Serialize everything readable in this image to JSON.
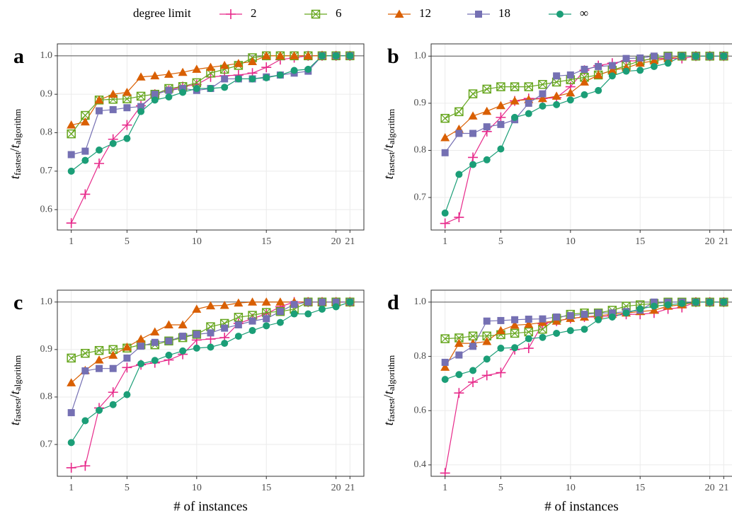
{
  "legend": {
    "title": "degree limit",
    "series": [
      {
        "name": "2",
        "color": "#e7298a",
        "marker": "plus"
      },
      {
        "name": "6",
        "color": "#66a61e",
        "marker": "boxed-x"
      },
      {
        "name": "12",
        "color": "#d95f02",
        "marker": "triangle"
      },
      {
        "name": "18",
        "color": "#7570b3",
        "marker": "square"
      },
      {
        "name": "∞",
        "color": "#1b9e77",
        "marker": "circle"
      }
    ]
  },
  "chart_data": [
    {
      "type": "line",
      "panel": "a",
      "y_label": [
        "t",
        "fastest",
        "/",
        "t",
        "algorithm"
      ],
      "x": [
        1,
        2,
        3,
        4,
        5,
        6,
        7,
        8,
        9,
        10,
        11,
        12,
        13,
        14,
        15,
        16,
        17,
        18,
        19,
        20,
        21
      ],
      "xlim": [
        0,
        22
      ],
      "xticks": [
        1,
        5,
        10,
        15,
        20,
        21
      ],
      "ylim": [
        0.547,
        1.031
      ],
      "yticks": [
        0.6,
        0.7,
        0.8,
        0.9,
        {
          "value": 1,
          "label": "1.0"
        }
      ],
      "hline": 1,
      "grid": true,
      "series": [
        {
          "values": [
            0.565,
            0.64,
            0.72,
            0.783,
            0.82,
            0.87,
            0.9,
            0.91,
            0.92,
            0.925,
            0.945,
            0.948,
            0.95,
            0.955,
            0.97,
            0.99,
            0.995,
            1,
            1,
            1,
            1
          ]
        },
        {
          "values": [
            0.797,
            0.845,
            0.885,
            0.887,
            0.888,
            0.895,
            0.9,
            0.915,
            0.92,
            0.93,
            0.955,
            0.965,
            0.975,
            0.995,
            1,
            1,
            1,
            1,
            1,
            1,
            1
          ]
        },
        {
          "values": [
            0.82,
            0.828,
            0.885,
            0.9,
            0.905,
            0.945,
            0.948,
            0.952,
            0.957,
            0.965,
            0.97,
            0.975,
            0.98,
            0.985,
            1,
            1,
            1,
            1,
            1,
            1,
            1
          ]
        },
        {
          "values": [
            0.743,
            0.752,
            0.857,
            0.86,
            0.865,
            0.868,
            0.9,
            0.91,
            0.915,
            0.91,
            0.915,
            0.94,
            0.94,
            0.94,
            0.945,
            0.95,
            0.955,
            0.96,
            1,
            1,
            1
          ]
        },
        {
          "values": [
            0.7,
            0.728,
            0.755,
            0.772,
            0.785,
            0.855,
            0.885,
            0.893,
            0.905,
            0.915,
            0.915,
            0.918,
            0.94,
            0.94,
            0.943,
            0.95,
            0.962,
            0.965,
            1,
            1,
            1
          ]
        }
      ]
    },
    {
      "type": "line",
      "panel": "b",
      "y_label": [
        "t",
        "fastest",
        "/",
        "t",
        "algorithm"
      ],
      "x": [
        1,
        2,
        3,
        4,
        5,
        6,
        7,
        8,
        9,
        10,
        11,
        12,
        13,
        14,
        15,
        16,
        17,
        18,
        19,
        20,
        21
      ],
      "xlim": [
        0,
        22
      ],
      "xticks": [
        1,
        5,
        10,
        15,
        20,
        21
      ],
      "ylim": [
        0.631,
        1.026
      ],
      "yticks": [
        0.7,
        0.8,
        0.9,
        {
          "value": 1,
          "label": "1.0"
        }
      ],
      "hline": 1,
      "grid": true,
      "series": [
        {
          "values": [
            0.645,
            0.658,
            0.785,
            0.84,
            0.87,
            0.905,
            0.91,
            0.91,
            0.912,
            0.935,
            0.97,
            0.98,
            0.985,
            0.99,
            0.99,
            0.995,
            0.995,
            0.995,
            1,
            1,
            1
          ]
        },
        {
          "values": [
            0.868,
            0.882,
            0.92,
            0.93,
            0.935,
            0.935,
            0.935,
            0.94,
            0.945,
            0.95,
            0.955,
            0.96,
            0.97,
            0.98,
            0.99,
            0.995,
            1,
            1,
            1,
            1,
            1
          ]
        },
        {
          "values": [
            0.827,
            0.845,
            0.873,
            0.883,
            0.895,
            0.905,
            0.908,
            0.91,
            0.915,
            0.922,
            0.945,
            0.96,
            0.97,
            0.975,
            0.985,
            0.99,
            0.995,
            1,
            1,
            1,
            1
          ]
        },
        {
          "values": [
            0.795,
            0.836,
            0.836,
            0.85,
            0.855,
            0.865,
            0.9,
            0.92,
            0.958,
            0.96,
            0.972,
            0.978,
            0.98,
            0.995,
            0.996,
            1,
            1,
            1,
            1,
            1,
            1
          ]
        },
        {
          "values": [
            0.667,
            0.749,
            0.77,
            0.78,
            0.803,
            0.87,
            0.878,
            0.894,
            0.897,
            0.907,
            0.918,
            0.927,
            0.958,
            0.968,
            0.97,
            0.978,
            0.985,
            1,
            1,
            1,
            1
          ]
        }
      ]
    },
    {
      "type": "line",
      "panel": "c",
      "y_label": [
        "t",
        "fastest",
        "/",
        "t",
        "algorithm"
      ],
      "x_label": "# of instances",
      "x": [
        1,
        2,
        3,
        4,
        5,
        6,
        7,
        8,
        9,
        10,
        11,
        12,
        13,
        14,
        15,
        16,
        17,
        18,
        19,
        20,
        21
      ],
      "xlim": [
        0,
        22
      ],
      "xticks": [
        1,
        5,
        10,
        15,
        20,
        21
      ],
      "ylim": [
        0.633,
        1.025
      ],
      "yticks": [
        0.7,
        0.8,
        0.9,
        {
          "value": 1,
          "label": "1.0"
        }
      ],
      "hline": 1,
      "grid": true,
      "series": [
        {
          "values": [
            0.651,
            0.655,
            0.777,
            0.81,
            0.862,
            0.868,
            0.872,
            0.878,
            0.89,
            0.92,
            0.922,
            0.925,
            0.955,
            0.965,
            0.975,
            0.99,
            1,
            1,
            1,
            1,
            1
          ]
        },
        {
          "values": [
            0.882,
            0.892,
            0.898,
            0.9,
            0.903,
            0.91,
            0.91,
            0.918,
            0.925,
            0.932,
            0.948,
            0.955,
            0.968,
            0.972,
            0.978,
            0.98,
            0.985,
            1,
            1,
            1,
            1
          ]
        },
        {
          "values": [
            0.83,
            0.856,
            0.878,
            0.888,
            0.905,
            0.922,
            0.937,
            0.952,
            0.952,
            0.985,
            0.992,
            0.993,
            0.998,
            1,
            1,
            1,
            1,
            1,
            1,
            1,
            1
          ]
        },
        {
          "values": [
            0.767,
            0.855,
            0.86,
            0.86,
            0.882,
            0.907,
            0.915,
            0.918,
            0.928,
            0.932,
            0.935,
            0.945,
            0.952,
            0.96,
            0.965,
            0.98,
            0.995,
            1,
            1,
            1,
            1
          ]
        },
        {
          "values": [
            0.704,
            0.75,
            0.772,
            0.784,
            0.805,
            0.87,
            0.877,
            0.888,
            0.897,
            0.903,
            0.905,
            0.913,
            0.928,
            0.94,
            0.95,
            0.957,
            0.975,
            0.975,
            0.985,
            0.99,
            1
          ]
        }
      ]
    },
    {
      "type": "line",
      "panel": "d",
      "y_label": [
        "t",
        "fastest",
        "/",
        "t",
        "algorithm"
      ],
      "x_label": "# of instances",
      "x": [
        1,
        2,
        3,
        4,
        5,
        6,
        7,
        8,
        9,
        10,
        11,
        12,
        13,
        14,
        15,
        16,
        17,
        18,
        19,
        20,
        21
      ],
      "xlim": [
        0,
        22
      ],
      "xticks": [
        1,
        5,
        10,
        15,
        20,
        21
      ],
      "ylim": [
        0.358,
        1.044
      ],
      "yticks": [
        0.4,
        0.6,
        0.8,
        {
          "value": 1,
          "label": "1.0"
        }
      ],
      "hline": 1,
      "grid": true,
      "series": [
        {
          "values": [
            0.37,
            0.665,
            0.705,
            0.73,
            0.74,
            0.825,
            0.83,
            0.92,
            0.93,
            0.94,
            0.945,
            0.945,
            0.95,
            0.955,
            0.955,
            0.96,
            0.975,
            0.98,
            1,
            1,
            1
          ]
        },
        {
          "values": [
            0.865,
            0.868,
            0.875,
            0.875,
            0.88,
            0.885,
            0.89,
            0.9,
            0.94,
            0.955,
            0.96,
            0.96,
            0.97,
            0.985,
            0.99,
            0.995,
            1,
            1,
            1,
            1,
            1
          ]
        },
        {
          "values": [
            0.76,
            0.848,
            0.848,
            0.855,
            0.895,
            0.915,
            0.918,
            0.925,
            0.93,
            0.94,
            0.945,
            0.95,
            0.955,
            0.96,
            0.965,
            0.97,
            0.985,
            0.99,
            1,
            1,
            1
          ]
        },
        {
          "values": [
            0.778,
            0.805,
            0.837,
            0.93,
            0.932,
            0.935,
            0.937,
            0.938,
            0.945,
            0.95,
            0.955,
            0.96,
            0.96,
            0.965,
            0.97,
            1,
            1,
            1,
            1,
            1,
            1
          ]
        },
        {
          "values": [
            0.715,
            0.733,
            0.748,
            0.79,
            0.83,
            0.832,
            0.865,
            0.87,
            0.885,
            0.895,
            0.9,
            0.935,
            0.945,
            0.96,
            0.975,
            0.985,
            0.99,
            0.995,
            1,
            1,
            1
          ]
        }
      ]
    }
  ]
}
